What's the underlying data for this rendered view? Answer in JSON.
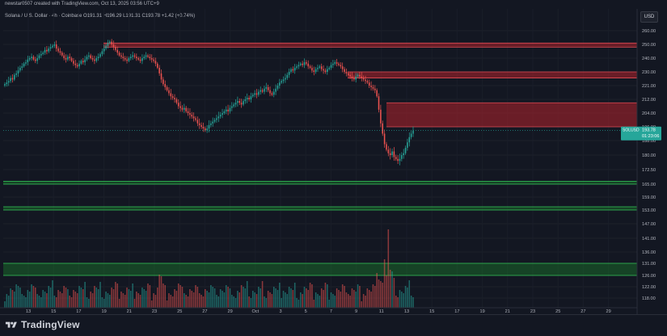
{
  "header": {
    "attribution": "newstar0507 created with TradingView.com, Oct 13, 2025 03:56 UTC+9",
    "symbol_line": "Solana / U.S. Dollar · 4h · Coinbase  O191.31  H196.29  L191.31  C193.78  +1.42 (+0.74%)"
  },
  "price_scale": {
    "currency": "USD",
    "ticks": [
      260.0,
      250.0,
      240.0,
      230.0,
      221.0,
      212.0,
      204.0,
      196.0,
      188.0,
      180.0,
      172.5,
      165.0,
      159.0,
      153.0,
      147.0,
      141.0,
      136.0,
      131.0,
      126.0,
      122.0,
      118.0
    ],
    "tick_labels": [
      "260.00",
      "250.00",
      "240.00",
      "230.00",
      "221.00",
      "212.00",
      "204.00",
      "196.00",
      "188.00",
      "180.00",
      "172.50",
      "165.00",
      "159.00",
      "153.00",
      "147.00",
      "141.00",
      "136.00",
      "131.00",
      "126.00",
      "122.00",
      "118.00"
    ],
    "last_price_label": "SOLUSD",
    "last_price_value": "193.78",
    "countdown": "01:23:06"
  },
  "time_axis": {
    "labels": [
      "13",
      "15",
      "17",
      "19",
      "21",
      "23",
      "25",
      "27",
      "29",
      "Oct",
      "3",
      "5",
      "7",
      "9",
      "11",
      "13",
      "15",
      "17",
      "19",
      "21",
      "23",
      "25",
      "27",
      "29"
    ]
  },
  "colors": {
    "up": "#26a69a",
    "down": "#ef5350",
    "resistance_zone": "#b2222b",
    "support_zone": "#1b7a2c",
    "background": "#131722"
  },
  "chart_data": {
    "type": "candlestick",
    "symbol": "SOLUSD",
    "interval": "4h",
    "exchange": "Coinbase",
    "ohlc_last": {
      "open": 191.31,
      "high": 196.29,
      "low": 191.31,
      "close": 193.78,
      "change": 1.42,
      "change_pct": 0.74
    },
    "y_axis": {
      "range": [
        114,
        266
      ],
      "piecewise_scale": true
    },
    "x_axis": {
      "labels": [
        "13",
        "15",
        "17",
        "19",
        "21",
        "23",
        "25",
        "27",
        "29",
        "Oct",
        "3",
        "5",
        "7",
        "9",
        "11",
        "13",
        "15",
        "17",
        "19",
        "21",
        "23",
        "25",
        "27",
        "29"
      ]
    },
    "close_series": [
      222,
      223,
      224,
      226,
      225,
      228,
      229,
      231,
      233,
      234,
      236,
      237,
      239,
      240,
      241,
      239,
      238,
      240,
      242,
      243,
      244,
      246,
      245,
      247,
      248,
      249,
      250,
      247,
      245,
      244,
      242,
      240,
      239,
      241,
      240,
      238,
      236,
      235,
      234,
      236,
      238,
      237,
      239,
      241,
      242,
      240,
      239,
      238,
      240,
      241,
      243,
      245,
      247,
      249,
      251,
      252,
      250,
      248,
      246,
      244,
      242,
      241,
      240,
      239,
      238,
      240,
      241,
      242,
      241,
      240,
      239,
      238,
      240,
      241,
      242,
      241,
      240,
      239,
      238,
      236,
      233,
      229,
      225,
      222,
      220,
      218,
      216,
      214,
      213,
      212,
      210,
      208,
      207,
      206,
      207,
      205,
      204,
      203,
      202,
      201,
      200,
      198,
      197,
      196,
      195,
      194,
      195,
      197,
      198,
      199,
      200,
      201,
      202,
      203,
      204,
      205,
      206,
      205,
      207,
      208,
      209,
      210,
      211,
      210,
      209,
      211,
      212,
      213,
      212,
      214,
      215,
      216,
      215,
      217,
      218,
      217,
      219,
      220,
      218,
      216,
      215,
      217,
      219,
      221,
      223,
      224,
      225,
      226,
      228,
      230,
      232,
      231,
      233,
      234,
      235,
      236,
      235,
      237,
      236,
      234,
      233,
      231,
      230,
      232,
      233,
      234,
      232,
      231,
      230,
      232,
      233,
      235,
      236,
      237,
      236,
      235,
      234,
      232,
      230,
      229,
      228,
      227,
      226,
      225,
      227,
      228,
      227,
      226,
      225,
      224,
      223,
      221,
      220,
      219,
      218,
      214,
      206,
      198,
      192,
      186,
      183,
      181,
      180,
      182,
      179,
      178,
      177,
      178,
      180,
      181,
      184,
      187,
      190,
      192,
      193.78
    ],
    "zones": [
      {
        "type": "resistance",
        "low": 248,
        "high": 251
      },
      {
        "type": "resistance",
        "low": 226,
        "high": 230
      },
      {
        "type": "resistance",
        "low": 196,
        "high": 210
      },
      {
        "type": "support",
        "low": 165,
        "high": 166.5
      },
      {
        "type": "support",
        "low": 153,
        "high": 154.5
      },
      {
        "type": "support",
        "low": 126,
        "high": 131
      }
    ],
    "volume_spike_index": 201
  }
}
